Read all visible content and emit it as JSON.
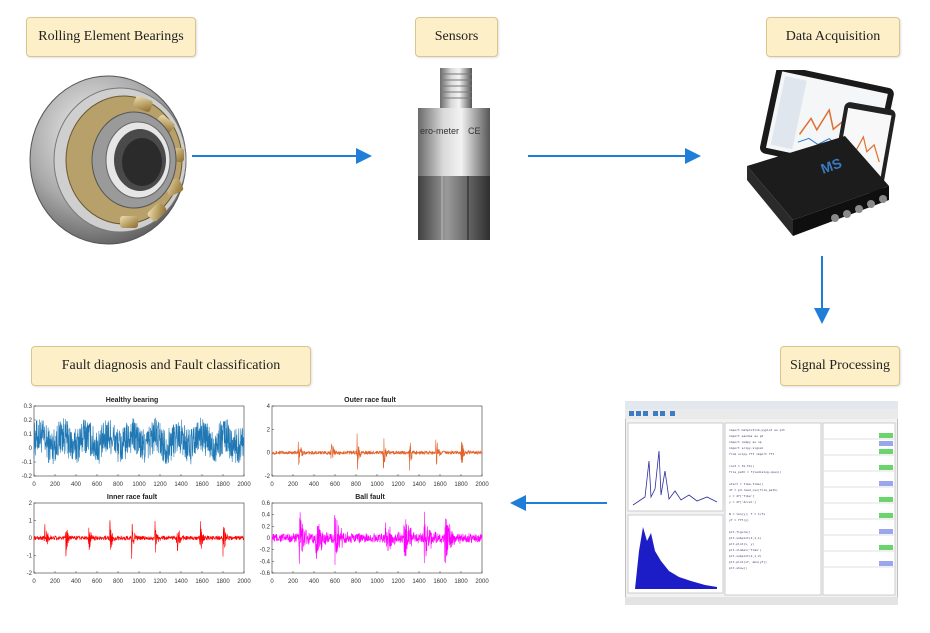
{
  "stages": {
    "bearings": "Rolling Element Bearings",
    "sensors": "Sensors",
    "acquisition": "Data Acquisition",
    "processing": "Signal Processing",
    "diagnosis": "Fault diagnosis and Fault classification"
  },
  "sensor_text": "ero-meter",
  "sensor_mark": "CE",
  "colors": {
    "label_fill": "#fdf0c9",
    "arrow": "#1f7fd8",
    "healthy": "#1f77b4",
    "outer": "#e0632a",
    "inner": "#ff0000",
    "ball": "#ff00ff"
  },
  "chart_data": [
    {
      "type": "line",
      "title": "Healthy bearing",
      "x_ticks": [
        "0",
        "200",
        "400",
        "600",
        "800",
        "1000",
        "1200",
        "1400",
        "1600",
        "1800",
        "2000"
      ],
      "y_ticks": [
        "0.3",
        "0.2",
        "0.1",
        "0",
        "-0.1",
        "-0.2"
      ],
      "xlim": [
        0,
        2000
      ],
      "ylim": [
        -0.2,
        0.3
      ],
      "series": [
        {
          "color": "#1f77b4",
          "pattern": "broadband",
          "amplitude": 0.1,
          "baseline": 0.05
        }
      ]
    },
    {
      "type": "line",
      "title": "Outer race fault",
      "x_ticks": [
        "0",
        "200",
        "400",
        "600",
        "800",
        "1000",
        "1200",
        "1400",
        "1600",
        "1800",
        "2000"
      ],
      "y_ticks": [
        "4",
        "2",
        "0",
        "-2"
      ],
      "xlim": [
        0,
        2000
      ],
      "ylim": [
        -2,
        4
      ],
      "series": [
        {
          "color": "#e0632a",
          "pattern": "impulses",
          "impulse_x": [
            250,
            560,
            810,
            1060,
            1310,
            1560,
            1800
          ],
          "amplitude": 1.8,
          "noise": 0.15
        }
      ]
    },
    {
      "type": "line",
      "title": "Inner race fault",
      "x_ticks": [
        "0",
        "200",
        "400",
        "600",
        "800",
        "1000",
        "1200",
        "1400",
        "1600",
        "1800",
        "2000"
      ],
      "y_ticks": [
        "2",
        "1",
        "0",
        "-1",
        "-2"
      ],
      "xlim": [
        0,
        2000
      ],
      "ylim": [
        -2,
        2
      ],
      "series": [
        {
          "color": "#ff0000",
          "pattern": "impulses",
          "impulse_x": [
            100,
            300,
            520,
            720,
            930,
            1150,
            1360,
            1580,
            1800
          ],
          "amplitude": 1.3,
          "noise": 0.12
        }
      ]
    },
    {
      "type": "line",
      "title": "Ball fault",
      "x_ticks": [
        "0",
        "200",
        "400",
        "600",
        "800",
        "1000",
        "1200",
        "1400",
        "1600",
        "1800",
        "2000"
      ],
      "y_ticks": [
        "0.6",
        "0.4",
        "0.2",
        "0",
        "-0.2",
        "-0.4",
        "-0.6"
      ],
      "xlim": [
        0,
        2000
      ],
      "ylim": [
        -0.6,
        0.6
      ],
      "series": [
        {
          "color": "#ff00ff",
          "pattern": "bursts",
          "impulse_x": [
            260,
            420,
            600,
            1080,
            1260,
            1450,
            1650
          ],
          "amplitude": 0.45,
          "noise": 0.08
        }
      ]
    }
  ]
}
